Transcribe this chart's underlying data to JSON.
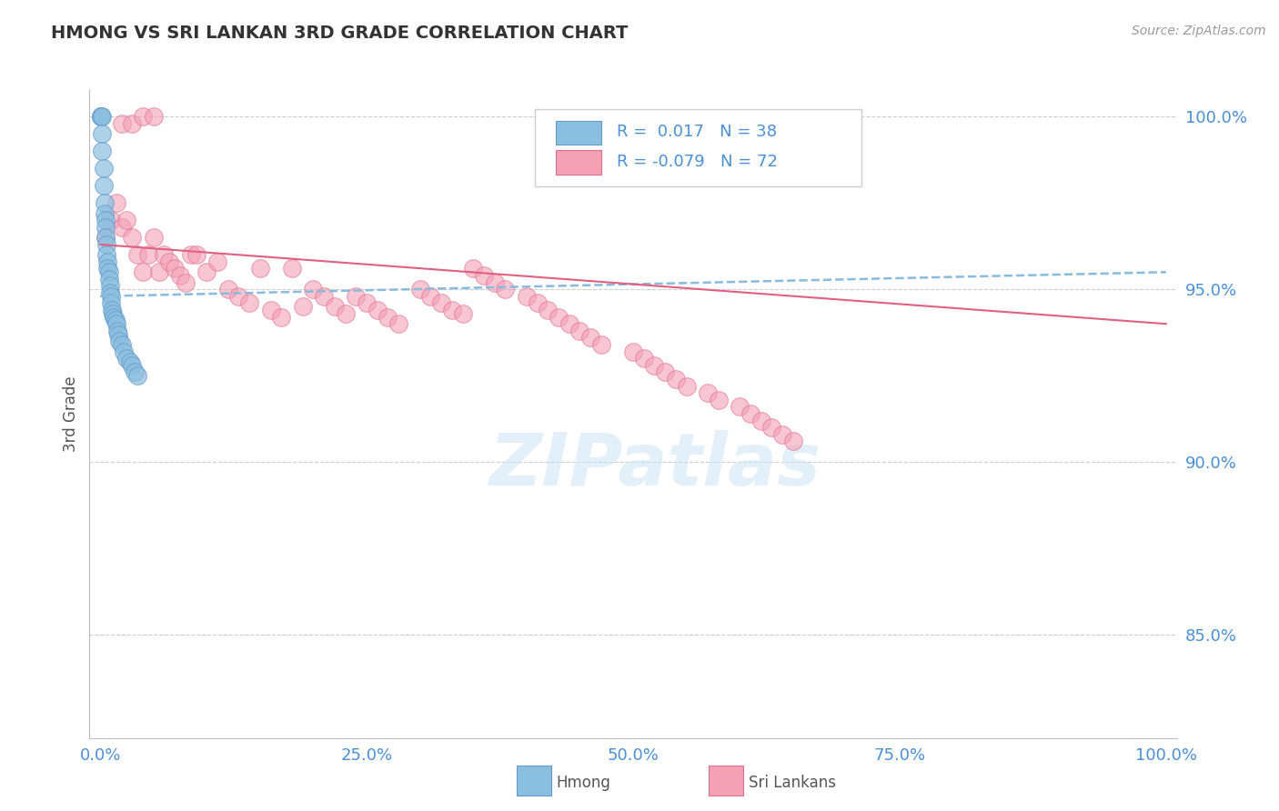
{
  "title": "HMONG VS SRI LANKAN 3RD GRADE CORRELATION CHART",
  "source": "Source: ZipAtlas.com",
  "ylabel": "3rd Grade",
  "y_tick_labels": [
    "100.0%",
    "95.0%",
    "90.0%",
    "85.0%"
  ],
  "y_tick_values": [
    1.0,
    0.95,
    0.9,
    0.85
  ],
  "x_tick_labels": [
    "0.0%",
    "25.0%",
    "50.0%",
    "75.0%",
    "100.0%"
  ],
  "x_tick_values": [
    0.0,
    0.25,
    0.5,
    0.75,
    1.0
  ],
  "xlim": [
    -0.01,
    1.01
  ],
  "ylim": [
    0.82,
    1.008
  ],
  "hmong_R": 0.017,
  "hmong_N": 38,
  "srilankan_R": -0.079,
  "srilankan_N": 72,
  "hmong_color": "#8bbfdf",
  "srilankan_color": "#f4a0b5",
  "hmong_edge_color": "#6699cc",
  "srilankan_edge_color": "#e07090",
  "hmong_trend_color": "#88bbdd",
  "srilankan_trend_color": "#e06080",
  "grid_color": "#cccccc",
  "title_color": "#333333",
  "axis_label_color": "#4a90d9",
  "source_color": "#999999",
  "legend_box_color": "#dddddd",
  "hmong_x": [
    0.001,
    0.001,
    0.001,
    0.002,
    0.002,
    0.002,
    0.003,
    0.003,
    0.004,
    0.004,
    0.005,
    0.005,
    0.005,
    0.006,
    0.006,
    0.007,
    0.007,
    0.008,
    0.008,
    0.009,
    0.009,
    0.01,
    0.01,
    0.011,
    0.012,
    0.013,
    0.014,
    0.015,
    0.016,
    0.017,
    0.018,
    0.02,
    0.022,
    0.025,
    0.028,
    0.03,
    0.032,
    0.035
  ],
  "hmong_y": [
    1.0,
    1.0,
    1.0,
    1.0,
    0.995,
    0.99,
    0.985,
    0.98,
    0.975,
    0.972,
    0.97,
    0.968,
    0.965,
    0.963,
    0.96,
    0.958,
    0.956,
    0.955,
    0.953,
    0.951,
    0.949,
    0.948,
    0.946,
    0.944,
    0.943,
    0.942,
    0.941,
    0.94,
    0.938,
    0.937,
    0.935,
    0.934,
    0.932,
    0.93,
    0.929,
    0.928,
    0.926,
    0.925
  ],
  "srilankan_x": [
    0.005,
    0.01,
    0.015,
    0.02,
    0.025,
    0.03,
    0.035,
    0.04,
    0.045,
    0.05,
    0.055,
    0.06,
    0.065,
    0.07,
    0.075,
    0.08,
    0.085,
    0.09,
    0.1,
    0.11,
    0.12,
    0.13,
    0.14,
    0.15,
    0.16,
    0.17,
    0.18,
    0.19,
    0.2,
    0.21,
    0.22,
    0.23,
    0.24,
    0.25,
    0.26,
    0.27,
    0.28,
    0.3,
    0.31,
    0.32,
    0.33,
    0.34,
    0.35,
    0.36,
    0.37,
    0.38,
    0.4,
    0.41,
    0.42,
    0.43,
    0.44,
    0.45,
    0.46,
    0.47,
    0.5,
    0.51,
    0.52,
    0.53,
    0.54,
    0.55,
    0.57,
    0.58,
    0.6,
    0.61,
    0.62,
    0.63,
    0.64,
    0.65,
    0.02,
    0.03,
    0.04,
    0.05
  ],
  "srilankan_y": [
    0.965,
    0.97,
    0.975,
    0.968,
    0.97,
    0.965,
    0.96,
    0.955,
    0.96,
    0.965,
    0.955,
    0.96,
    0.958,
    0.956,
    0.954,
    0.952,
    0.96,
    0.96,
    0.955,
    0.958,
    0.95,
    0.948,
    0.946,
    0.956,
    0.944,
    0.942,
    0.956,
    0.945,
    0.95,
    0.948,
    0.945,
    0.943,
    0.948,
    0.946,
    0.944,
    0.942,
    0.94,
    0.95,
    0.948,
    0.946,
    0.944,
    0.943,
    0.956,
    0.954,
    0.952,
    0.95,
    0.948,
    0.946,
    0.944,
    0.942,
    0.94,
    0.938,
    0.936,
    0.934,
    0.932,
    0.93,
    0.928,
    0.926,
    0.924,
    0.922,
    0.92,
    0.918,
    0.916,
    0.914,
    0.912,
    0.91,
    0.908,
    0.906,
    0.998,
    0.998,
    1.0,
    1.0
  ],
  "hmong_trend_x": [
    0.0,
    1.0
  ],
  "hmong_trend_y": [
    0.948,
    0.955
  ],
  "srilankan_trend_x": [
    0.0,
    1.0
  ],
  "srilankan_trend_y": [
    0.963,
    0.94
  ]
}
